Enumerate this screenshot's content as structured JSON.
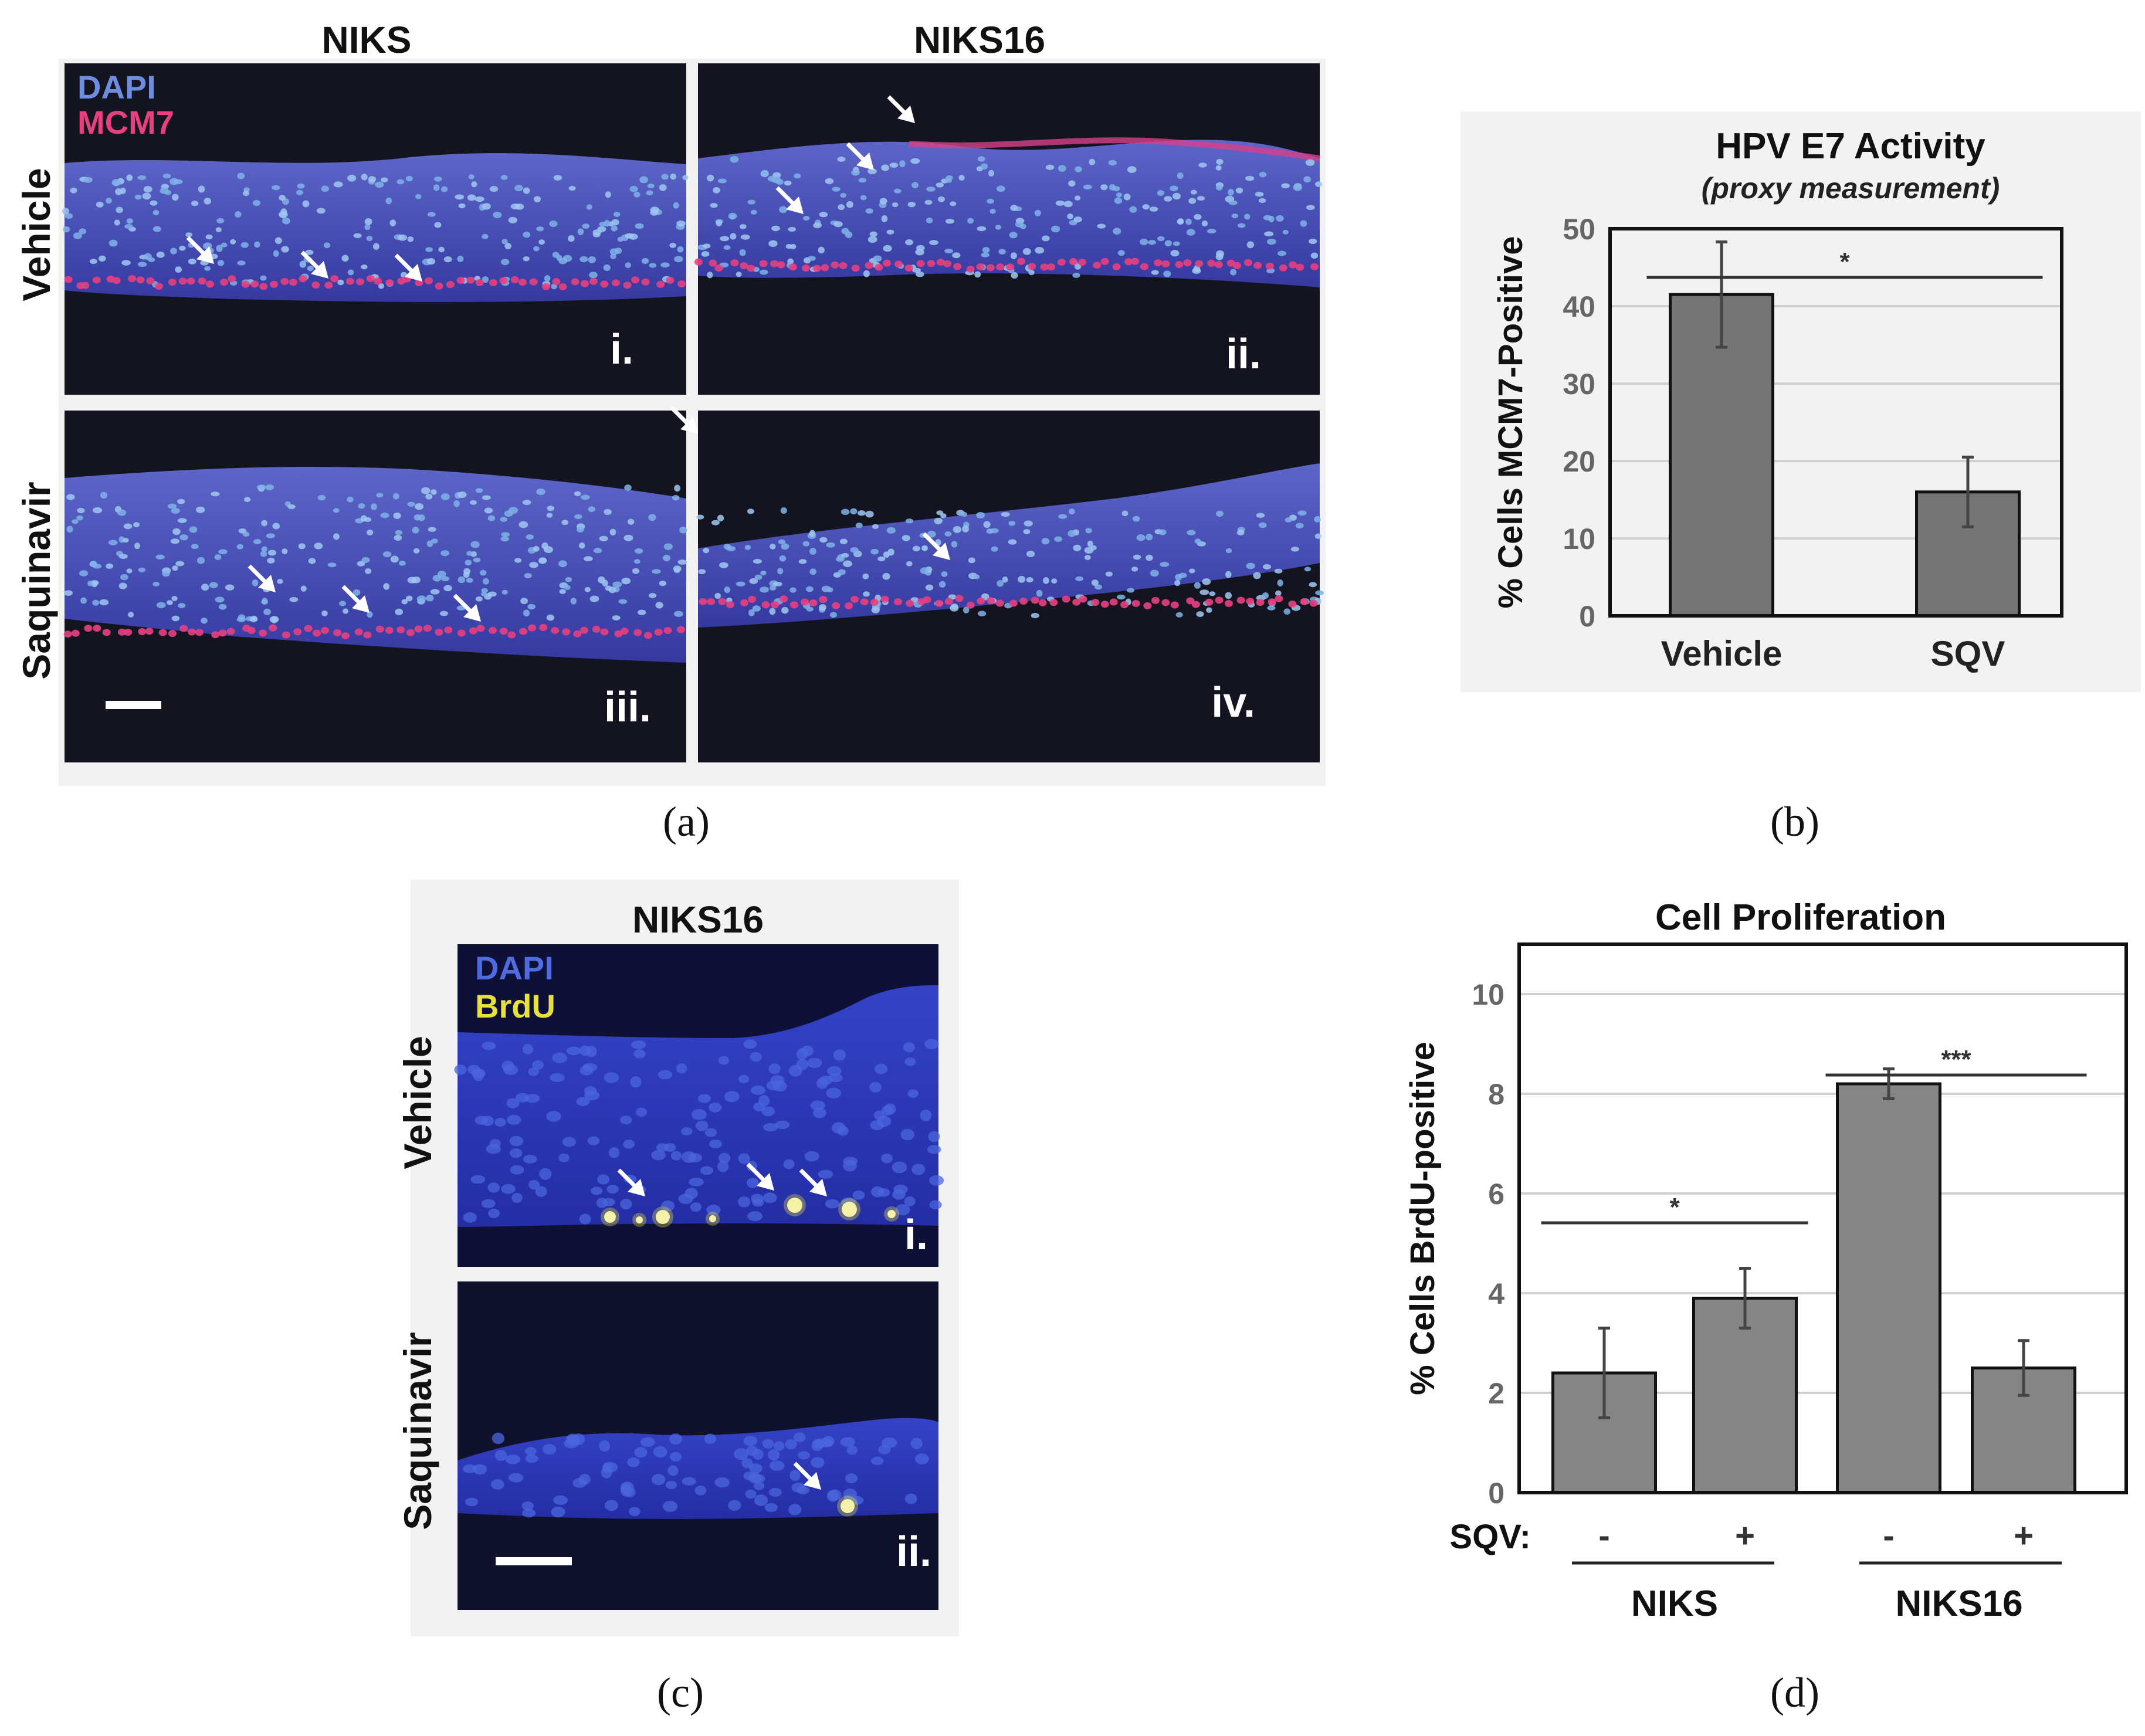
{
  "panel_a": {
    "col_labels": [
      "NIKS",
      "NIKS16"
    ],
    "row_labels": [
      "Vehicle",
      "Saquinavir"
    ],
    "legend": {
      "dapi": "DAPI",
      "marker": "MCM7"
    },
    "tiles": [
      "i.",
      "ii.",
      "iii.",
      "iv."
    ],
    "caption": "(a)",
    "colors": {
      "dapi": "#6f8de0",
      "marker": "#e8407f"
    }
  },
  "panel_c": {
    "title": "NIKS16",
    "row_labels": [
      "Vehicle",
      "Saquinavir"
    ],
    "legend": {
      "dapi": "DAPI",
      "marker": "BrdU"
    },
    "tiles": [
      "i.",
      "ii."
    ],
    "caption": "(c)",
    "colors": {
      "dapi": "#4f6be0",
      "marker": "#e6e040"
    }
  },
  "chart_data": [
    {
      "type": "bar",
      "title": "HPV E7 Activity",
      "subtitle": "(proxy measurement)",
      "ylabel": "% Cells MCM7-Positive",
      "xlabel": "",
      "categories": [
        "Vehicle",
        "SQV"
      ],
      "values": [
        41.5,
        16
      ],
      "errors": [
        6.8,
        4.5
      ],
      "ylim": [
        0,
        50
      ],
      "yticks": [
        0,
        10,
        20,
        30,
        40,
        50
      ],
      "significance": [
        {
          "label": "*",
          "from": 0,
          "to": 1
        }
      ],
      "caption": "(b)",
      "bar_color": "#757575"
    },
    {
      "type": "bar",
      "title": "Cell Proliferation",
      "ylabel": "% Cells BrdU-positive",
      "xlabel": "",
      "categories": [
        "-",
        "+",
        "-",
        "+"
      ],
      "groups": [
        "NIKS",
        "NIKS16"
      ],
      "sqv_label": "SQV:",
      "values": [
        2.4,
        3.9,
        8.2,
        2.5
      ],
      "errors": [
        0.9,
        0.6,
        0.3,
        0.55
      ],
      "ylim": [
        0,
        11
      ],
      "yticks": [
        0,
        2,
        4,
        6,
        8,
        10
      ],
      "significance": [
        {
          "label": "*",
          "from": 0,
          "to": 1
        },
        {
          "label": "***",
          "from": 2,
          "to": 3
        }
      ],
      "caption": "(d)",
      "bar_color": "#858585"
    }
  ]
}
